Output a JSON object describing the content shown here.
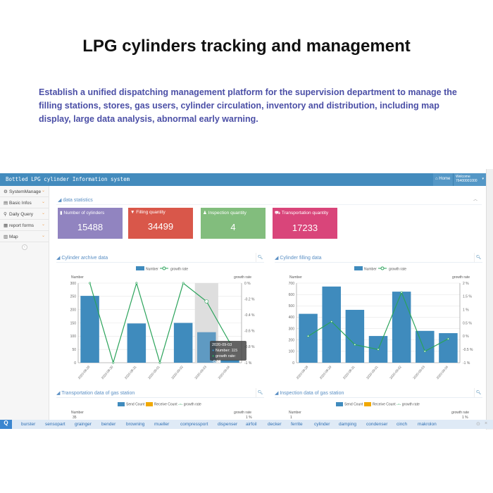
{
  "headline": "LPG cylinders tracking and management",
  "description": "Establish a unified dispatching management platform for the supervision department to manage the filling stations, stores, gas users, cylinder circulation, inventory and distribution, including map display, large data analysis, abnormal early warning.",
  "app": {
    "title": "Bottled LPG cylinder Information system",
    "home": "Home",
    "welcome_label": "Welcome",
    "user": "76400001000"
  },
  "sidebar": {
    "items": [
      {
        "label": "SystemManage",
        "icon": "gears-icon"
      },
      {
        "label": "Basic Infos",
        "icon": "database-icon"
      },
      {
        "label": "Daily Query",
        "icon": "search-icon"
      },
      {
        "label": "report forms",
        "icon": "table-icon"
      },
      {
        "label": "Map",
        "icon": "map-icon"
      }
    ]
  },
  "stats": {
    "section": "data statistics",
    "cards": [
      {
        "label": "Number of cylinders",
        "value": "15488",
        "color": "#9184c0"
      },
      {
        "label": "Filling quantity",
        "value": "34499",
        "color": "#d9574a"
      },
      {
        "label": "Inspection quantity",
        "value": "4",
        "color": "#82bd7d"
      },
      {
        "label": "Transportation quantity",
        "value": "17233",
        "color": "#d9457a"
      }
    ]
  },
  "panels": {
    "p1": "Cylinder archive data",
    "p2": "Cylinder filling data",
    "p3": "Transportation data of gas station",
    "p4": "Inspection data of gas station",
    "legend_number": "Number",
    "legend_growth": "growth rate",
    "legend_send": "Send Count",
    "legend_receive": "Receive Count",
    "axis_left": "Number",
    "axis_right": "growth rate",
    "p3_top": "35",
    "p4_top": "1",
    "growth_top": "1 %"
  },
  "chart_data": [
    {
      "type": "bar",
      "title": "Cylinder archive data",
      "categories": [
        "2020-08-29",
        "2020-08-30",
        "2020-08-31",
        "2020-09-01",
        "2020-09-02",
        "2020-09-03",
        "2020-09-04"
      ],
      "series": [
        {
          "name": "Number",
          "type": "bar",
          "values": [
            252,
            0,
            148,
            0,
            150,
            115,
            10
          ]
        },
        {
          "name": "growth rate",
          "type": "line",
          "values": [
            0,
            -1,
            0,
            -1,
            0,
            -0.23,
            -0.75
          ]
        }
      ],
      "ylabel": "Number",
      "y2label": "growth rate",
      "ylim": [
        0,
        300
      ],
      "yticks": [
        0,
        50,
        100,
        150,
        200,
        250,
        300
      ],
      "y2lim": [
        -1,
        0
      ],
      "y2ticks": [
        -1,
        -0.8,
        -0.6,
        -0.4,
        -0.2,
        0
      ],
      "tooltip": {
        "date": "2020-09-03",
        "number": "Number: 115",
        "growth": "growth rate: -0.23"
      },
      "highlight": "2020-09-03",
      "color_bar": "#3f8bbd",
      "color_line": "#2aa35a"
    },
    {
      "type": "bar",
      "title": "Cylinder filling data",
      "categories": [
        "2020-08-28",
        "2020-08-29",
        "2020-08-31",
        "2020-09-01",
        "2020-09-02",
        "2020-09-03",
        "2020-09-04"
      ],
      "series": [
        {
          "name": "Number",
          "type": "bar",
          "values": [
            430,
            670,
            465,
            235,
            625,
            280,
            260
          ]
        },
        {
          "name": "growth rate",
          "type": "line",
          "values": [
            0,
            0.55,
            -0.32,
            -0.5,
            1.65,
            -0.57,
            -0.1
          ]
        }
      ],
      "ylabel": "Number",
      "y2label": "growth rate",
      "ylim": [
        0,
        700
      ],
      "yticks": [
        0,
        100,
        200,
        300,
        400,
        500,
        600,
        700
      ],
      "y2lim": [
        -1,
        2
      ],
      "y2ticks": [
        -1,
        -0.5,
        0,
        0.5,
        1,
        1.5,
        2
      ],
      "color_bar": "#3f8bbd",
      "color_line": "#2aa35a"
    }
  ],
  "search": {
    "keywords": [
      "burster",
      "sensopart",
      "grainger",
      "bender",
      "browning",
      "mueller",
      "compressport",
      "dispenser",
      "airfoil",
      "decker",
      "ferrite",
      "cylinder",
      "damping",
      "condenser",
      "cinch",
      "makrolon"
    ]
  }
}
